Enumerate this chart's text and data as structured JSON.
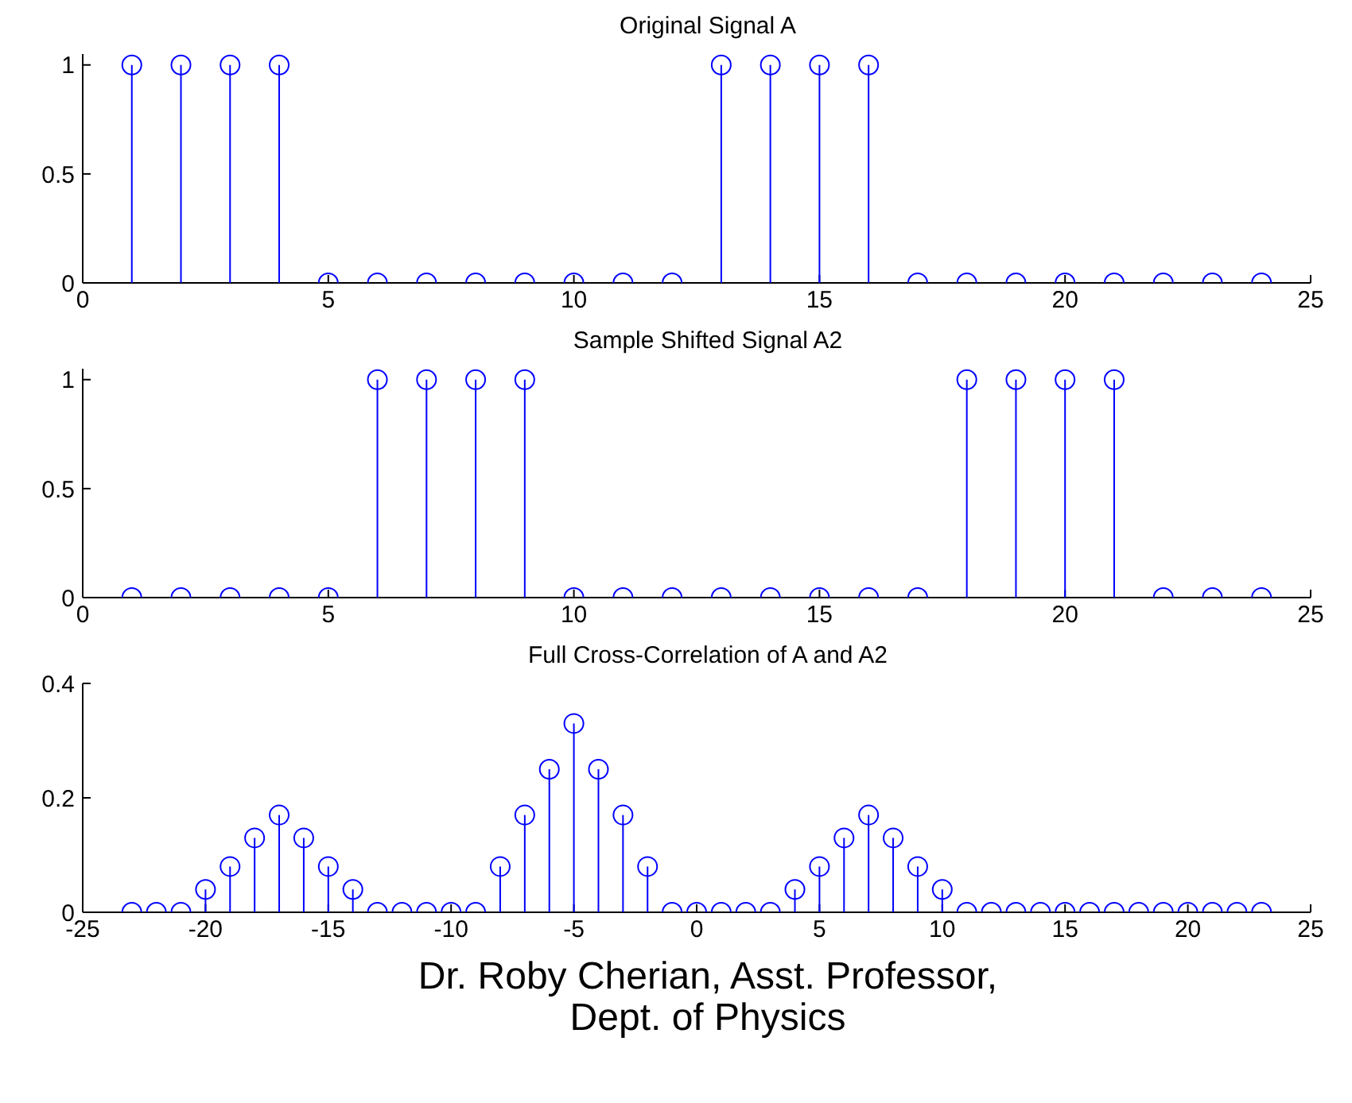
{
  "chart_data": [
    {
      "type": "lollipop",
      "title": "Original Signal A",
      "x": [
        1,
        2,
        3,
        4,
        5,
        6,
        7,
        8,
        9,
        10,
        11,
        12,
        13,
        14,
        15,
        16,
        17,
        18,
        19,
        20,
        21,
        22,
        23,
        24
      ],
      "values": [
        1,
        1,
        1,
        1,
        0,
        0,
        0,
        0,
        0,
        0,
        0,
        0,
        1,
        1,
        1,
        1,
        0,
        0,
        0,
        0,
        0,
        0,
        0,
        0
      ],
      "color": "#0000ff",
      "marker": "circle",
      "xlim": [
        0,
        25
      ],
      "xticks": [
        0,
        5,
        10,
        15,
        20,
        25
      ],
      "ylim": [
        0,
        1.05
      ],
      "yticks": [
        0,
        0.5,
        1
      ]
    },
    {
      "type": "lollipop",
      "title": "Sample Shifted Signal A2",
      "x": [
        1,
        2,
        3,
        4,
        5,
        6,
        7,
        8,
        9,
        10,
        11,
        12,
        13,
        14,
        15,
        16,
        17,
        18,
        19,
        20,
        21,
        22,
        23,
        24
      ],
      "values": [
        0,
        0,
        0,
        0,
        0,
        1,
        1,
        1,
        1,
        0,
        0,
        0,
        0,
        0,
        0,
        0,
        0,
        1,
        1,
        1,
        1,
        0,
        0,
        0
      ],
      "color": "#0000ff",
      "marker": "circle",
      "xlim": [
        0,
        25
      ],
      "xticks": [
        0,
        5,
        10,
        15,
        20,
        25
      ],
      "ylim": [
        0,
        1.05
      ],
      "yticks": [
        0,
        0.5,
        1
      ]
    },
    {
      "type": "lollipop",
      "title": "Full Cross-Correlation of A and A2",
      "x": [
        -23,
        -22,
        -21,
        -20,
        -19,
        -18,
        -17,
        -16,
        -15,
        -14,
        -13,
        -12,
        -11,
        -10,
        -9,
        -8,
        -7,
        -6,
        -5,
        -4,
        -3,
        -2,
        -1,
        0,
        1,
        2,
        3,
        4,
        5,
        6,
        7,
        8,
        9,
        10,
        11,
        12,
        13,
        14,
        15,
        16,
        17,
        18,
        19,
        20,
        21,
        22,
        23
      ],
      "values": [
        0,
        0,
        0,
        0.04,
        0.08,
        0.13,
        0.17,
        0.13,
        0.08,
        0.04,
        0,
        0,
        0,
        0,
        0,
        0.08,
        0.17,
        0.25,
        0.33,
        0.25,
        0.17,
        0.08,
        0,
        0,
        0,
        0,
        0,
        0.04,
        0.08,
        0.13,
        0.17,
        0.13,
        0.08,
        0.04,
        0,
        0,
        0,
        0,
        0,
        0,
        0,
        0,
        0,
        0,
        0,
        0,
        0
      ],
      "color": "#0000ff",
      "marker": "circle",
      "xlim": [
        -25,
        25
      ],
      "xticks": [
        -25,
        -20,
        -15,
        -10,
        -5,
        0,
        5,
        10,
        15,
        20,
        25
      ],
      "ylim": [
        0,
        0.4
      ],
      "yticks": [
        0,
        0.2,
        0.4
      ],
      "annotations": [
        "Dr. Roby Cherian, Asst. Professor,",
        "Dept. of Physics"
      ]
    }
  ]
}
